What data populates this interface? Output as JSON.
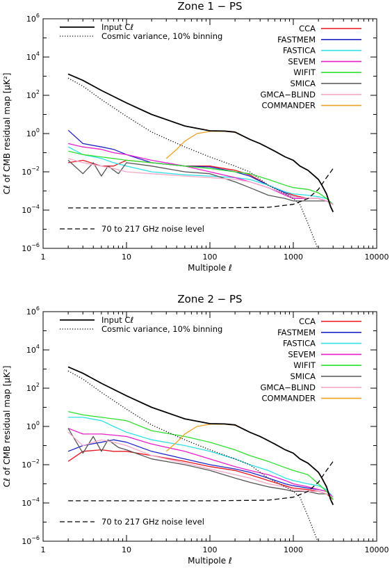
{
  "chart_data": [
    {
      "type": "line",
      "title": "Zone 1 − PS",
      "xlabel": "Multipole ℓ",
      "ylabel": "Cℓ of CMB residual map [μK²]",
      "xscale": "log",
      "yscale": "log",
      "xlim": [
        1,
        10000
      ],
      "ylim": [
        1e-06,
        1000000.0
      ],
      "x_ticks": [
        "1",
        "10",
        "100",
        "1000",
        "10000"
      ],
      "y_ticks": [
        {
          "base": "10",
          "exp": "−6"
        },
        {
          "base": "10",
          "exp": "−4"
        },
        {
          "base": "10",
          "exp": "−2"
        },
        {
          "base": "10",
          "exp": "0"
        },
        {
          "base": "10",
          "exp": "2"
        },
        {
          "base": "10",
          "exp": "4"
        },
        {
          "base": "10",
          "exp": "6"
        }
      ],
      "legend_left": [
        {
          "label": "Input Cℓ",
          "style": "solid"
        },
        {
          "label": "Cosmic variance, 10% binning",
          "style": "dotted"
        }
      ],
      "legend_right": [
        "CCA",
        "FASTMEM",
        "FASTICA",
        "SEVEM",
        "WIFIT",
        "SMICA",
        "GMCA−BLIND",
        "COMMANDER"
      ],
      "legend_bottom": {
        "label": "70 to 217 GHz noise level",
        "style": "dashed"
      },
      "series": [
        {
          "name": "Input Cℓ",
          "color": "#000000",
          "style": "solid",
          "x": [
            2,
            3,
            5,
            10,
            20,
            50,
            100,
            150,
            200,
            300,
            400,
            600,
            800,
            1000,
            1200,
            1500,
            1800,
            2000,
            2200,
            2500,
            2800,
            3000
          ],
          "y": [
            1300,
            600,
            180,
            40,
            10,
            2.5,
            1.4,
            1.35,
            1.2,
            0.5,
            0.3,
            0.12,
            0.06,
            0.04,
            0.02,
            0.012,
            0.006,
            0.004,
            0.002,
            0.0007,
            0.00015,
            8e-05
          ]
        },
        {
          "name": "Cosmic variance, 10% binning",
          "color": "#000000",
          "style": "dotted",
          "x": [
            2,
            3,
            5,
            10,
            20,
            50,
            100,
            200,
            300,
            500,
            800,
            1000,
            1200,
            1500,
            2000
          ],
          "y": [
            800,
            300,
            60,
            8,
            1.2,
            0.2,
            0.06,
            0.02,
            0.01,
            0.002,
            0.0007,
            0.0004,
            0.0002,
            2e-05,
            8e-07
          ]
        },
        {
          "name": "70 to 217 GHz noise level",
          "color": "#000000",
          "style": "dashed",
          "x": [
            2,
            10,
            100,
            500,
            1000,
            1500,
            2000,
            2500,
            3000
          ],
          "y": [
            0.00013,
            0.00013,
            0.00013,
            0.00014,
            0.0002,
            0.0004,
            0.0012,
            0.005,
            0.015
          ]
        },
        {
          "name": "CCA",
          "color": "#e8141b",
          "x": [
            2,
            3,
            5,
            7,
            10,
            20,
            50,
            100,
            200,
            300,
            500,
            800,
            1000,
            1500,
            2000,
            2500,
            3000
          ],
          "y": [
            0.03,
            0.04,
            0.02,
            0.02,
            0.04,
            0.03,
            0.02,
            0.02,
            0.012,
            0.007,
            0.002,
            0.0009,
            0.0006,
            0.0004,
            0.0004,
            0.0003,
            0.0002
          ]
        },
        {
          "name": "FASTMEM",
          "color": "#1a24c7",
          "x": [
            2,
            3,
            5,
            7,
            10,
            20,
            50,
            100,
            200,
            300,
            500,
            800,
            1000,
            1500,
            2000,
            2500,
            3000
          ],
          "y": [
            1.5,
            0.3,
            0.2,
            0.15,
            0.08,
            0.03,
            0.02,
            0.018,
            0.01,
            0.006,
            0.002,
            0.0008,
            0.0005,
            0.0004,
            0.0004,
            0.0003,
            0.0002
          ]
        },
        {
          "name": "FASTICA",
          "color": "#2de0e8",
          "x": [
            2,
            3,
            5,
            7,
            10,
            20,
            50,
            100,
            200,
            300,
            500,
            800,
            1000,
            1500,
            2000,
            2500,
            3000
          ],
          "y": [
            0.2,
            0.08,
            0.05,
            0.03,
            0.02,
            0.01,
            0.007,
            0.006,
            0.005,
            0.004,
            0.002,
            0.0009,
            0.0007,
            0.0006,
            0.0005,
            0.0004,
            0.0002
          ]
        },
        {
          "name": "SEVEM",
          "color": "#e81ecb",
          "x": [
            2,
            3,
            5,
            7,
            10,
            20,
            50,
            100,
            200,
            300,
            500,
            800,
            1000,
            1500,
            2000,
            2500,
            3000
          ],
          "y": [
            0.3,
            0.2,
            0.15,
            0.1,
            0.08,
            0.04,
            0.02,
            0.01,
            0.005,
            0.003,
            0.0015,
            0.0006,
            0.0004,
            0.0004,
            0.0004,
            0.0003,
            0.0002
          ]
        },
        {
          "name": "WIFIT",
          "color": "#2ee02e",
          "x": [
            2,
            3,
            5,
            7,
            10,
            20,
            50,
            100,
            200,
            300,
            500,
            800,
            1000,
            1500,
            2000,
            2500,
            3000
          ],
          "y": [
            0.12,
            0.08,
            0.06,
            0.05,
            0.04,
            0.03,
            0.02,
            0.015,
            0.01,
            0.008,
            0.004,
            0.002,
            0.0015,
            0.0012,
            0.0008,
            0.0004,
            0.0002
          ]
        },
        {
          "name": "SMICA",
          "color": "#555555",
          "x": [
            2,
            3,
            4,
            5,
            6,
            8,
            10,
            20,
            50,
            100,
            200,
            300,
            500,
            800,
            1000,
            1500,
            2000,
            2500,
            3000
          ],
          "y": [
            0.04,
            0.008,
            0.03,
            0.006,
            0.02,
            0.008,
            0.03,
            0.02,
            0.01,
            0.008,
            0.003,
            0.0015,
            0.0006,
            0.0004,
            0.0003,
            0.0003,
            0.0003,
            0.0003,
            0.0002
          ]
        },
        {
          "name": "GMCA−BLIND",
          "color": "#f7a8c9",
          "x": [
            2,
            3,
            5,
            7,
            10,
            20,
            50,
            100,
            200,
            300,
            500,
            800,
            1000,
            1500,
            2000,
            2500,
            3000
          ],
          "y": [
            0.05,
            0.03,
            0.02,
            0.015,
            0.01,
            0.008,
            0.006,
            0.005,
            0.004,
            0.003,
            0.0015,
            0.0007,
            0.0005,
            0.0004,
            0.0004,
            0.0003,
            0.0002
          ]
        },
        {
          "name": "COMMANDER",
          "color": "#f0a020",
          "x": [
            30,
            40,
            50,
            70,
            100,
            150,
            200,
            300,
            400,
            600,
            800,
            1000,
            1200,
            1500,
            1800,
            2000,
            2200,
            2500,
            2800,
            3000
          ],
          "y": [
            0.05,
            0.15,
            0.4,
            1.0,
            1.3,
            1.3,
            1.15,
            0.5,
            0.3,
            0.12,
            0.06,
            0.04,
            0.02,
            0.012,
            0.006,
            0.004,
            0.002,
            0.0007,
            0.00015,
            8e-05
          ]
        }
      ]
    },
    {
      "type": "line",
      "title": "Zone 2 − PS",
      "xlabel": "Multipole ℓ",
      "ylabel": "Cℓ of CMB residual map [μK²]",
      "xscale": "log",
      "yscale": "log",
      "xlim": [
        1,
        10000
      ],
      "ylim": [
        1e-06,
        1000000.0
      ],
      "x_ticks": [
        "1",
        "10",
        "100",
        "1000",
        "10000"
      ],
      "y_ticks": [
        {
          "base": "10",
          "exp": "−6"
        },
        {
          "base": "10",
          "exp": "−4"
        },
        {
          "base": "10",
          "exp": "−2"
        },
        {
          "base": "10",
          "exp": "0"
        },
        {
          "base": "10",
          "exp": "2"
        },
        {
          "base": "10",
          "exp": "4"
        },
        {
          "base": "10",
          "exp": "6"
        }
      ],
      "legend_left": [
        {
          "label": "Input Cℓ",
          "style": "solid"
        },
        {
          "label": "Cosmic variance, 10% binning",
          "style": "dotted"
        }
      ],
      "legend_right": [
        "CCA",
        "FASTMEM",
        "FASTICA",
        "SEVEM",
        "WIFIT",
        "SMICA",
        "GMCA−BLIND",
        "COMMANDER"
      ],
      "legend_bottom": {
        "label": "70 to 217 GHz noise level",
        "style": "dashed"
      },
      "series": [
        {
          "name": "Input Cℓ",
          "color": "#000000",
          "style": "solid",
          "x": [
            2,
            3,
            5,
            10,
            20,
            50,
            100,
            150,
            200,
            300,
            400,
            600,
            800,
            1000,
            1200,
            1500,
            1800,
            2000,
            2200,
            2500,
            2800,
            3000
          ],
          "y": [
            1300,
            600,
            180,
            40,
            10,
            2.5,
            1.4,
            1.35,
            1.2,
            0.5,
            0.3,
            0.12,
            0.06,
            0.04,
            0.02,
            0.012,
            0.006,
            0.004,
            0.002,
            0.0007,
            0.00015,
            8e-05
          ]
        },
        {
          "name": "Cosmic variance, 10% binning",
          "color": "#000000",
          "style": "dotted",
          "x": [
            2,
            3,
            5,
            10,
            20,
            50,
            100,
            200,
            300,
            500,
            800,
            1000,
            1200,
            1500,
            2000
          ],
          "y": [
            800,
            300,
            60,
            8,
            1.2,
            0.2,
            0.06,
            0.02,
            0.01,
            0.002,
            0.0007,
            0.0004,
            0.0002,
            2e-05,
            8e-07
          ]
        },
        {
          "name": "70 to 217 GHz noise level",
          "color": "#000000",
          "style": "dashed",
          "x": [
            2,
            10,
            100,
            500,
            1000,
            1500,
            2000,
            2500,
            3000
          ],
          "y": [
            0.00013,
            0.00013,
            0.00013,
            0.00014,
            0.0002,
            0.0004,
            0.0012,
            0.005,
            0.015
          ]
        },
        {
          "name": "CCA",
          "color": "#e8141b",
          "x": [
            2,
            3,
            5,
            7,
            10,
            20,
            50,
            100,
            200,
            300,
            500,
            800,
            1000,
            1500,
            2000,
            2500,
            3000
          ],
          "y": [
            0.015,
            0.05,
            0.06,
            0.05,
            0.05,
            0.03,
            0.015,
            0.008,
            0.005,
            0.003,
            0.0015,
            0.0008,
            0.0006,
            0.0005,
            0.0004,
            0.0003,
            0.00015
          ]
        },
        {
          "name": "FASTMEM",
          "color": "#1a24c7",
          "x": [
            2,
            3,
            5,
            7,
            10,
            20,
            50,
            100,
            200,
            300,
            500,
            800,
            1000,
            1500,
            2000,
            2500,
            3000
          ],
          "y": [
            0.05,
            0.1,
            0.15,
            0.2,
            0.15,
            0.05,
            0.02,
            0.01,
            0.006,
            0.004,
            0.002,
            0.001,
            0.0008,
            0.0006,
            0.0005,
            0.0004,
            0.0002
          ]
        },
        {
          "name": "FASTICA",
          "color": "#2de0e8",
          "x": [
            2,
            3,
            5,
            7,
            10,
            20,
            50,
            100,
            200,
            300,
            500,
            800,
            1000,
            1500,
            2000,
            2500,
            3000
          ],
          "y": [
            3,
            3,
            2,
            1,
            0.5,
            0.2,
            0.1,
            0.05,
            0.02,
            0.01,
            0.005,
            0.002,
            0.0015,
            0.001,
            0.0008,
            0.0005,
            0.0002
          ]
        },
        {
          "name": "SEVEM",
          "color": "#e81ecb",
          "x": [
            2,
            3,
            5,
            7,
            10,
            20,
            50,
            100,
            200,
            300,
            500,
            800,
            1000,
            1500,
            2000,
            2500,
            3000
          ],
          "y": [
            0.8,
            0.4,
            0.4,
            0.35,
            0.3,
            0.12,
            0.05,
            0.02,
            0.008,
            0.005,
            0.003,
            0.0015,
            0.001,
            0.0007,
            0.0005,
            0.0004,
            0.0002
          ]
        },
        {
          "name": "WIFIT",
          "color": "#2ee02e",
          "x": [
            2,
            3,
            5,
            7,
            10,
            20,
            50,
            100,
            200,
            300,
            500,
            800,
            1000,
            1500,
            2000,
            2500,
            3000
          ],
          "y": [
            6,
            4,
            3,
            2.5,
            2,
            0.6,
            0.3,
            0.15,
            0.06,
            0.03,
            0.015,
            0.007,
            0.005,
            0.003,
            0.001,
            0.0004,
            0.00015
          ]
        },
        {
          "name": "SMICA",
          "color": "#555555",
          "x": [
            2,
            3,
            4,
            5,
            6,
            8,
            10,
            20,
            50,
            100,
            200,
            300,
            500,
            800,
            1000,
            1500,
            2000,
            2500,
            3000
          ],
          "y": [
            0.8,
            0.04,
            0.3,
            0.05,
            0.2,
            0.08,
            0.06,
            0.02,
            0.01,
            0.005,
            0.002,
            0.0012,
            0.0007,
            0.0005,
            0.0004,
            0.0004,
            0.0003,
            0.0003,
            0.0002
          ]
        },
        {
          "name": "GMCA−BLIND",
          "color": "#f7a8c9",
          "x": [
            2,
            3,
            5,
            7,
            10,
            20,
            50,
            100,
            200,
            300,
            500,
            800,
            1000,
            1500,
            2000,
            2500,
            3000
          ],
          "y": [
            0.5,
            0.1,
            0.2,
            0.15,
            0.1,
            0.03,
            0.012,
            0.006,
            0.003,
            0.002,
            0.001,
            0.0007,
            0.0005,
            0.0004,
            0.0004,
            0.0003,
            0.0002
          ]
        },
        {
          "name": "COMMANDER",
          "color": "#f0a020",
          "x": [
            30,
            40,
            50,
            70,
            100,
            150,
            200,
            300,
            400,
            600,
            800,
            1000,
            1200,
            1500,
            1800,
            2000,
            2200,
            2500,
            2800,
            3000
          ],
          "y": [
            0.05,
            0.15,
            0.4,
            1.0,
            1.3,
            1.3,
            1.15,
            0.5,
            0.3,
            0.12,
            0.06,
            0.04,
            0.02,
            0.012,
            0.006,
            0.004,
            0.002,
            0.0007,
            0.00015,
            8e-05
          ]
        }
      ]
    }
  ]
}
